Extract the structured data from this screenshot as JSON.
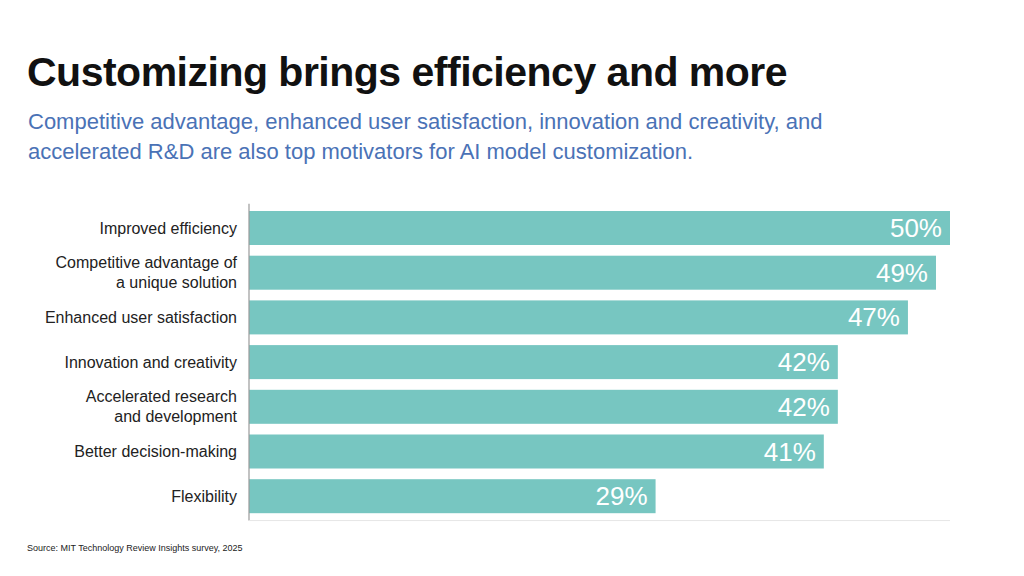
{
  "chart_data": {
    "type": "bar",
    "orientation": "horizontal",
    "title": "Customizing brings efficiency and more",
    "subtitle": "Competitive advantage, enhanced user satisfaction, innovation and creativity, and\naccelerated R&D are also top motivators for AI model customization.",
    "categories": [
      "Improved efficiency",
      "Competitive advantage of\na unique solution",
      "Enhanced user satisfaction",
      "Innovation and creativity",
      "Accelerated research\nand development",
      "Better decision-making",
      "Flexibility"
    ],
    "values": [
      50,
      49,
      47,
      42,
      42,
      41,
      29
    ],
    "value_labels": [
      "50%",
      "49%",
      "47%",
      "42%",
      "42%",
      "41%",
      "29%"
    ],
    "color": "#77c6c1",
    "xlim": [
      0,
      50
    ],
    "data_labels": true,
    "tick_labels": false,
    "grid": false,
    "source": "Source: MIT Technology Review Insights survey, 2025"
  }
}
